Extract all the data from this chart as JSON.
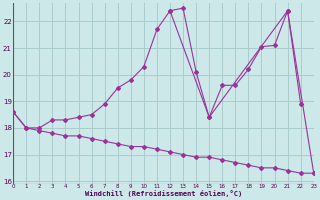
{
  "xlabel": "Windchill (Refroidissement éolien,°C)",
  "background_color": "#cce8e8",
  "grid_color": "#aacccc",
  "line_color": "#993399",
  "xlim": [
    0,
    23
  ],
  "ylim": [
    15.9,
    22.7
  ],
  "yticks": [
    16,
    17,
    18,
    19,
    20,
    21,
    22
  ],
  "xticks": [
    0,
    1,
    2,
    3,
    4,
    5,
    6,
    7,
    8,
    9,
    10,
    11,
    12,
    13,
    14,
    15,
    16,
    17,
    18,
    19,
    20,
    21,
    22,
    23
  ],
  "series": [
    {
      "x": [
        0,
        1,
        2,
        3,
        4,
        5,
        6,
        7,
        8,
        9,
        10,
        11,
        12,
        13,
        14,
        15,
        16,
        17,
        18,
        19,
        20,
        21,
        22
      ],
      "y": [
        18.6,
        18.0,
        18.0,
        18.3,
        18.3,
        18.4,
        18.5,
        18.9,
        19.5,
        19.8,
        20.3,
        21.7,
        22.4,
        22.5,
        20.1,
        18.4,
        19.6,
        19.6,
        20.2,
        21.05,
        21.1,
        22.4,
        18.9
      ]
    },
    {
      "x": [
        12,
        15,
        21,
        23
      ],
      "y": [
        22.4,
        18.4,
        22.4,
        16.3
      ]
    },
    {
      "x": [
        0,
        1,
        2,
        3,
        4,
        5,
        6,
        7,
        8,
        9,
        10,
        11,
        12,
        13,
        14,
        15,
        16,
        17,
        18,
        19,
        20,
        21,
        22,
        23
      ],
      "y": [
        18.6,
        18.0,
        17.9,
        17.8,
        17.7,
        17.7,
        17.6,
        17.5,
        17.4,
        17.3,
        17.3,
        17.2,
        17.1,
        17.0,
        16.9,
        16.9,
        16.8,
        16.7,
        16.6,
        16.5,
        16.5,
        16.4,
        16.3,
        16.3
      ]
    }
  ]
}
